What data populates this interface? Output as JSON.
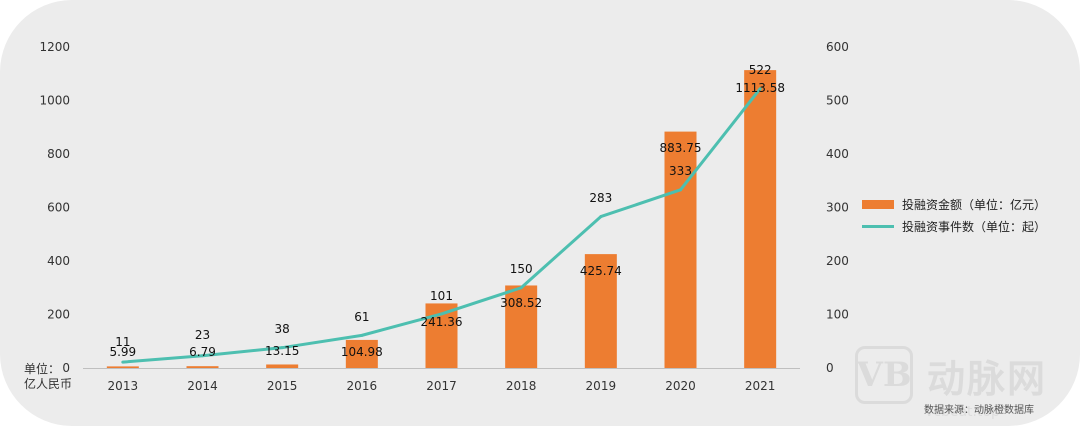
{
  "colors": {
    "bar": "#ED7D31",
    "line": "#4DBFB0",
    "axis_text": "#333333"
  },
  "axis_unit_label": "单位：\n亿人民币",
  "legend": {
    "bar_label": "投融资金额（单位：亿元）",
    "line_label": "投融资事件数（单位：起）",
    "placement": "right"
  },
  "source": "数据来源：动脉橙数据库",
  "watermark": {
    "logo_icon": "vb-logo-icon",
    "text": "动脉网",
    "site": "vcbeat.top"
  },
  "chart_data": {
    "type": "bar+line",
    "categories": [
      "2013",
      "2014",
      "2015",
      "2016",
      "2017",
      "2018",
      "2019",
      "2020",
      "2021"
    ],
    "series": [
      {
        "name": "投融资金额（单位：亿元）",
        "type": "bar",
        "axis": "left",
        "values": [
          5.99,
          6.79,
          13.15,
          104.98,
          241.36,
          308.52,
          425.74,
          883.75,
          1113.58
        ],
        "labels": [
          "5.99",
          "6.79",
          "13.15",
          "104.98",
          "241.36",
          "308.52",
          "425.74",
          "883.75",
          "1113.58"
        ]
      },
      {
        "name": "投融资事件数（单位：起）",
        "type": "line",
        "axis": "right",
        "values": [
          11,
          23,
          38,
          61,
          101,
          150,
          283,
          333,
          522
        ],
        "labels": [
          "11",
          "23",
          "38",
          "61",
          "101",
          "150",
          "283",
          "333",
          "522"
        ]
      }
    ],
    "y_left": {
      "ticks": [
        "0",
        "200",
        "400",
        "600",
        "800",
        "1000",
        "1200"
      ],
      "ylim": [
        0,
        1200
      ]
    },
    "y_right": {
      "ticks": [
        "0",
        "100",
        "200",
        "300",
        "400",
        "500",
        "600"
      ],
      "ylim": [
        0,
        600
      ]
    },
    "grid": false
  }
}
